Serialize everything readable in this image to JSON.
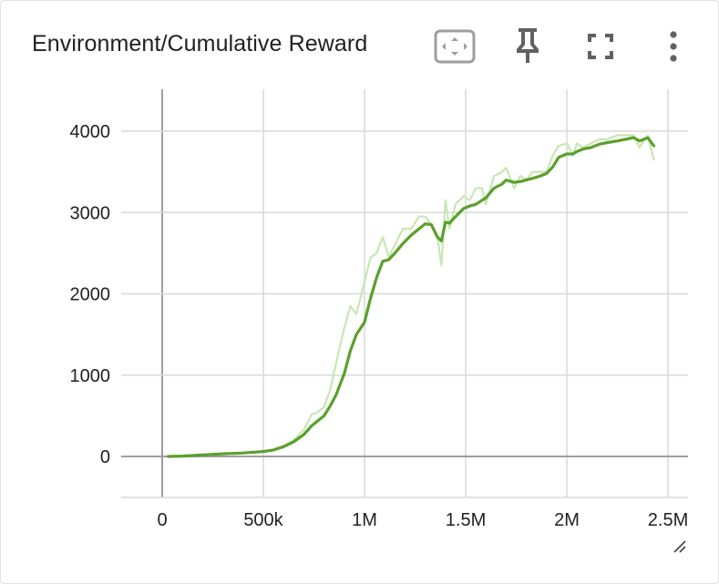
{
  "card": {
    "title": "Environment/Cumulative Reward",
    "icons": [
      "fit-domain-icon",
      "pin-icon",
      "fullscreen-icon",
      "more-vert-icon",
      "resize-handle-icon"
    ]
  },
  "colors": {
    "smoothed": "#5aa02c",
    "raw": "#c9e6b5",
    "grid": "#d9d9d9",
    "axis": "#9e9e9e",
    "text": "#212121"
  },
  "chart_data": {
    "type": "line",
    "title": "Environment/Cumulative Reward",
    "xlabel": "",
    "ylabel": "",
    "xlim": [
      -200000,
      2600000
    ],
    "ylim": [
      -500,
      4500
    ],
    "x_ticks": [
      {
        "value": 0,
        "label": "0"
      },
      {
        "value": 500000,
        "label": "500k"
      },
      {
        "value": 1000000,
        "label": "1M"
      },
      {
        "value": 1500000,
        "label": "1.5M"
      },
      {
        "value": 2000000,
        "label": "2M"
      },
      {
        "value": 2500000,
        "label": "2.5M"
      }
    ],
    "y_ticks": [
      {
        "value": 0,
        "label": "0"
      },
      {
        "value": 1000,
        "label": "1000"
      },
      {
        "value": 2000,
        "label": "2000"
      },
      {
        "value": 3000,
        "label": "3000"
      },
      {
        "value": 4000,
        "label": "4000"
      }
    ],
    "grid": true,
    "series": [
      {
        "role": "raw",
        "x": [
          30000,
          100000,
          200000,
          300000,
          400000,
          500000,
          550000,
          600000,
          650000,
          700000,
          740000,
          760000,
          800000,
          830000,
          860000,
          900000,
          930000,
          960000,
          1000000,
          1030000,
          1060000,
          1090000,
          1120000,
          1150000,
          1190000,
          1230000,
          1270000,
          1300000,
          1330000,
          1360000,
          1380000,
          1400000,
          1420000,
          1450000,
          1490000,
          1520000,
          1550000,
          1580000,
          1600000,
          1640000,
          1680000,
          1700000,
          1740000,
          1770000,
          1800000,
          1830000,
          1870000,
          1900000,
          1930000,
          1960000,
          2000000,
          2030000,
          2050000,
          2080000,
          2120000,
          2160000,
          2200000,
          2250000,
          2290000,
          2330000,
          2360000,
          2400000,
          2430000
        ],
        "y": [
          0,
          5,
          20,
          35,
          45,
          60,
          85,
          130,
          200,
          330,
          520,
          530,
          610,
          820,
          1150,
          1580,
          1850,
          1750,
          2150,
          2450,
          2500,
          2700,
          2450,
          2600,
          2800,
          2800,
          2950,
          2950,
          2850,
          2700,
          2350,
          3150,
          2800,
          3100,
          3200,
          3150,
          3300,
          3300,
          3100,
          3450,
          3500,
          3550,
          3300,
          3450,
          3400,
          3500,
          3500,
          3500,
          3700,
          3820,
          3850,
          3700,
          3850,
          3800,
          3850,
          3900,
          3900,
          3950,
          3950,
          3950,
          3800,
          3950,
          3650
        ]
      },
      {
        "role": "smoothed",
        "x": [
          30000,
          100000,
          200000,
          300000,
          400000,
          500000,
          550000,
          600000,
          650000,
          700000,
          740000,
          760000,
          800000,
          830000,
          860000,
          900000,
          930000,
          960000,
          1000000,
          1030000,
          1060000,
          1090000,
          1120000,
          1150000,
          1190000,
          1230000,
          1270000,
          1300000,
          1330000,
          1360000,
          1380000,
          1400000,
          1420000,
          1450000,
          1490000,
          1520000,
          1550000,
          1580000,
          1600000,
          1640000,
          1680000,
          1700000,
          1740000,
          1770000,
          1800000,
          1830000,
          1870000,
          1900000,
          1930000,
          1960000,
          2000000,
          2030000,
          2050000,
          2080000,
          2120000,
          2160000,
          2200000,
          2250000,
          2290000,
          2330000,
          2360000,
          2400000,
          2430000
        ],
        "y": [
          0,
          5,
          18,
          32,
          43,
          60,
          80,
          120,
          180,
          270,
          380,
          420,
          500,
          620,
          760,
          1020,
          1300,
          1500,
          1650,
          1950,
          2200,
          2400,
          2420,
          2500,
          2620,
          2720,
          2800,
          2860,
          2850,
          2700,
          2650,
          2880,
          2870,
          2950,
          3050,
          3080,
          3100,
          3150,
          3180,
          3300,
          3350,
          3400,
          3370,
          3380,
          3400,
          3420,
          3450,
          3480,
          3560,
          3680,
          3720,
          3720,
          3750,
          3780,
          3800,
          3840,
          3860,
          3880,
          3900,
          3920,
          3880,
          3920,
          3820
        ]
      }
    ]
  }
}
